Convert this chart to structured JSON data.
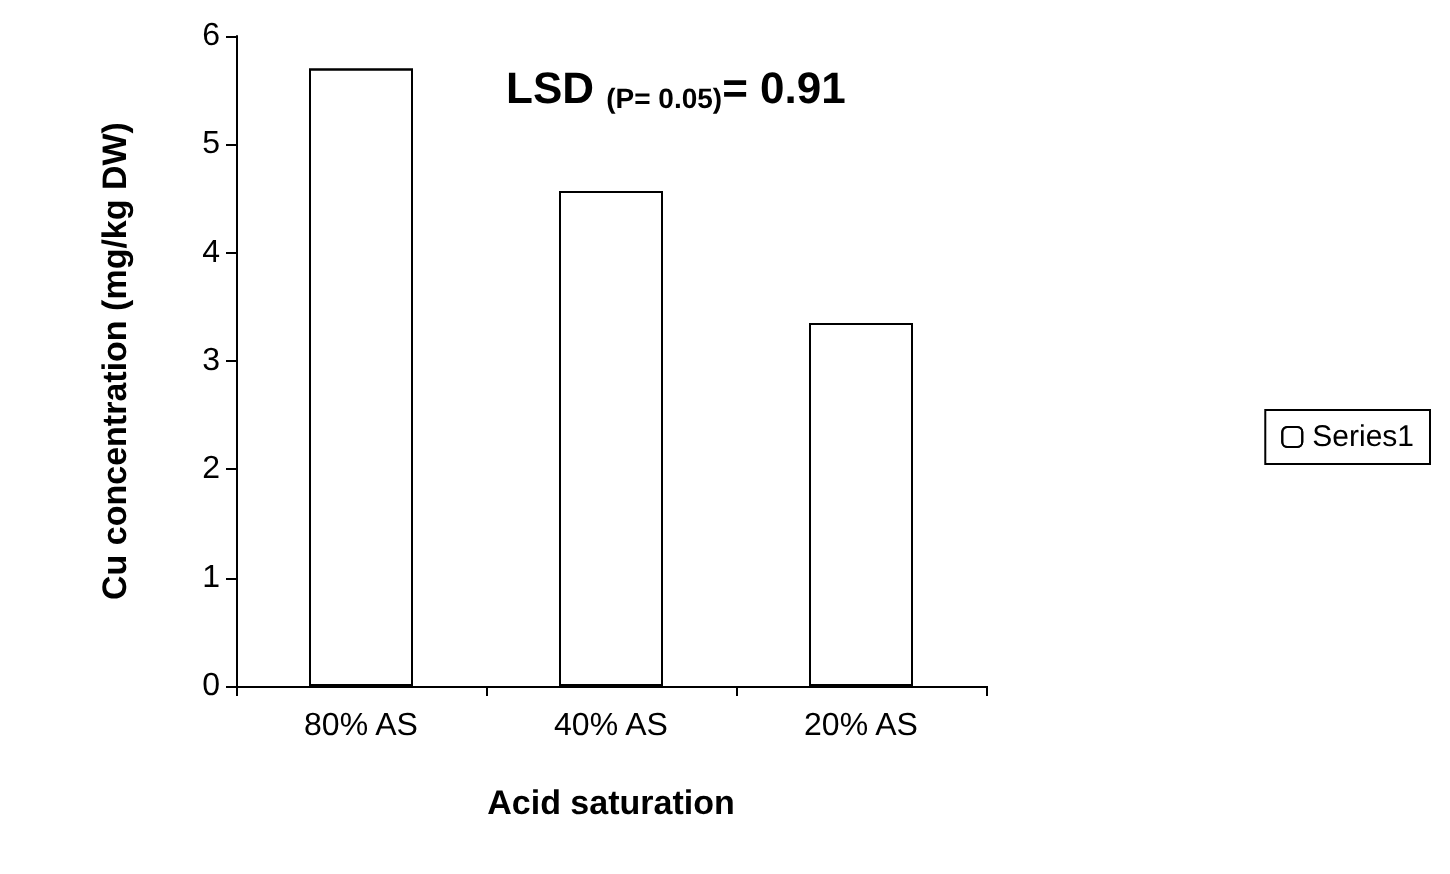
{
  "chart_data": {
    "type": "bar",
    "xlabel": "Acid saturation",
    "ylabel": "Cu concentration (mg/kg DW)",
    "categories": [
      "80% AS",
      "40% AS",
      "20% AS"
    ],
    "series": [
      {
        "name": "Series1",
        "color": "#ffffff",
        "values": [
          5.7,
          4.57,
          3.35
        ]
      }
    ],
    "ylim": [
      0,
      6
    ],
    "yticks": [
      0,
      1,
      2,
      3,
      4,
      5,
      6
    ],
    "grid": false,
    "legend": "right",
    "annotations": [
      "LSD $_{(P= 0.05)}$= 0.91"
    ]
  }
}
